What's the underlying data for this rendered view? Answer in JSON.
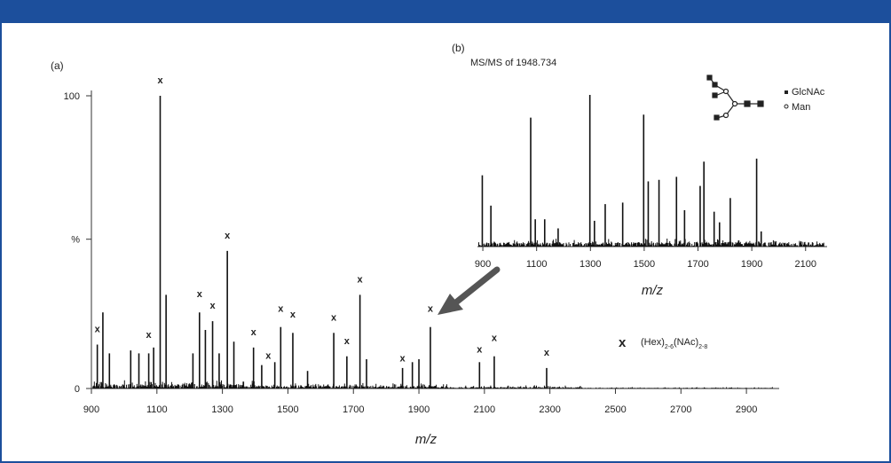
{
  "chart_data": [
    {
      "type": "line",
      "panel_label": "(a)",
      "xlabel": "m/z",
      "ylabel": "",
      "xlim": [
        900,
        3000
      ],
      "ylim": [
        0,
        100
      ],
      "x_ticks": [
        "900",
        "1100",
        "1300",
        "1500",
        "1700",
        "1900",
        "2100",
        "2300",
        "2500",
        "2700",
        "2900"
      ],
      "y_ticks": [
        {
          "label": "0",
          "value": 0
        },
        {
          "label": "%",
          "value": 51
        },
        {
          "label": "100",
          "value": 100
        }
      ],
      "peaks": [
        {
          "x": 918,
          "y": 15
        },
        {
          "x": 935,
          "y": 26
        },
        {
          "x": 955,
          "y": 12
        },
        {
          "x": 1020,
          "y": 13
        },
        {
          "x": 1045,
          "y": 12
        },
        {
          "x": 1075,
          "y": 12
        },
        {
          "x": 1090,
          "y": 14
        },
        {
          "x": 1110,
          "y": 100
        },
        {
          "x": 1128,
          "y": 32
        },
        {
          "x": 1210,
          "y": 12
        },
        {
          "x": 1230,
          "y": 26
        },
        {
          "x": 1248,
          "y": 20
        },
        {
          "x": 1270,
          "y": 23
        },
        {
          "x": 1290,
          "y": 12
        },
        {
          "x": 1315,
          "y": 47
        },
        {
          "x": 1335,
          "y": 16
        },
        {
          "x": 1395,
          "y": 14
        },
        {
          "x": 1420,
          "y": 8
        },
        {
          "x": 1460,
          "y": 9
        },
        {
          "x": 1478,
          "y": 21
        },
        {
          "x": 1515,
          "y": 19
        },
        {
          "x": 1560,
          "y": 6
        },
        {
          "x": 1640,
          "y": 19
        },
        {
          "x": 1680,
          "y": 11
        },
        {
          "x": 1720,
          "y": 32
        },
        {
          "x": 1740,
          "y": 10
        },
        {
          "x": 1850,
          "y": 7
        },
        {
          "x": 1880,
          "y": 9
        },
        {
          "x": 1900,
          "y": 10
        },
        {
          "x": 1935,
          "y": 21
        },
        {
          "x": 2085,
          "y": 9
        },
        {
          "x": 2130,
          "y": 11
        },
        {
          "x": 2290,
          "y": 7
        }
      ],
      "markers": [
        {
          "x": 918,
          "y": 18
        },
        {
          "x": 1075,
          "y": 16
        },
        {
          "x": 1110,
          "y": 103
        },
        {
          "x": 1230,
          "y": 30
        },
        {
          "x": 1270,
          "y": 26
        },
        {
          "x": 1315,
          "y": 50
        },
        {
          "x": 1395,
          "y": 17
        },
        {
          "x": 1440,
          "y": 9
        },
        {
          "x": 1478,
          "y": 25
        },
        {
          "x": 1515,
          "y": 23
        },
        {
          "x": 1640,
          "y": 22
        },
        {
          "x": 1680,
          "y": 14
        },
        {
          "x": 1720,
          "y": 35
        },
        {
          "x": 1850,
          "y": 8
        },
        {
          "x": 1935,
          "y": 25
        },
        {
          "x": 2085,
          "y": 11
        },
        {
          "x": 2130,
          "y": 15
        },
        {
          "x": 2290,
          "y": 10
        }
      ],
      "legend": {
        "symbol": "x",
        "text_main": "(Hex)",
        "sub1": "2-6",
        "text_mid": "(NAc)",
        "sub2": "2-8",
        "color": "#e8393a"
      },
      "line_color": "#111111",
      "marker_color": "#e8393a"
    },
    {
      "type": "line",
      "panel_label": "(b)",
      "title": "MS/MS of 1948.734",
      "xlabel": "m/z",
      "xlim": [
        880,
        2180
      ],
      "ylim": [
        0,
        100
      ],
      "x_ticks": [
        "900",
        "1100",
        "1300",
        "1500",
        "1700",
        "1900",
        "2100"
      ],
      "peaks": [
        {
          "x": 898,
          "y": 47
        },
        {
          "x": 930,
          "y": 27
        },
        {
          "x": 1078,
          "y": 85
        },
        {
          "x": 1095,
          "y": 18
        },
        {
          "x": 1130,
          "y": 18
        },
        {
          "x": 1180,
          "y": 12
        },
        {
          "x": 1298,
          "y": 100
        },
        {
          "x": 1315,
          "y": 17
        },
        {
          "x": 1355,
          "y": 28
        },
        {
          "x": 1420,
          "y": 29
        },
        {
          "x": 1498,
          "y": 87
        },
        {
          "x": 1515,
          "y": 43
        },
        {
          "x": 1555,
          "y": 44
        },
        {
          "x": 1620,
          "y": 46
        },
        {
          "x": 1650,
          "y": 24
        },
        {
          "x": 1708,
          "y": 40
        },
        {
          "x": 1722,
          "y": 56
        },
        {
          "x": 1760,
          "y": 23
        },
        {
          "x": 1780,
          "y": 16
        },
        {
          "x": 1820,
          "y": 32
        },
        {
          "x": 1918,
          "y": 58
        },
        {
          "x": 1935,
          "y": 10
        }
      ],
      "legend": [
        {
          "symbol": "square",
          "label": "GlcNAc"
        },
        {
          "symbol": "circle",
          "label": "Man"
        }
      ]
    }
  ],
  "arrow_color": "#555555"
}
